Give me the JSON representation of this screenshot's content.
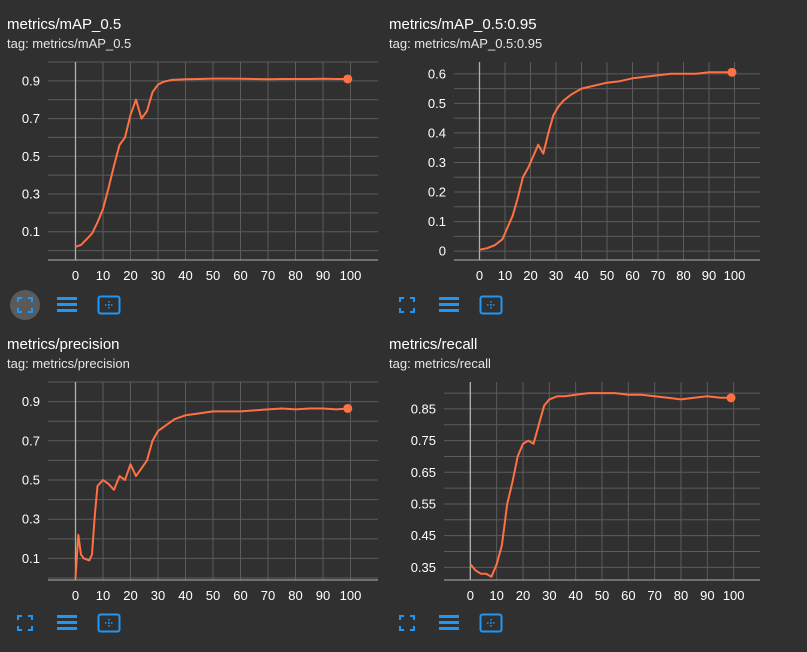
{
  "icons": {
    "fullscreen": "fullscreen-icon",
    "log_scale": "toggle-y-log-icon",
    "fit_domain": "fit-domain-icon"
  },
  "colors": {
    "background": "#303030",
    "grid": "#5c5c5c",
    "axis": "#b0b0b0",
    "series": "#ff7043",
    "series_raw": "#a0522d"
  },
  "cards": [
    {
      "title": "metrics/mAP_0.5",
      "tag": "tag: metrics/mAP_0.5",
      "chart_data": {
        "type": "line",
        "title": "metrics/mAP_0.5",
        "xlim": [
          -10,
          110
        ],
        "ylim": [
          -0.05,
          1.0
        ],
        "xticks": [
          0,
          10,
          20,
          30,
          40,
          50,
          60,
          70,
          80,
          90,
          100
        ],
        "yticks": [
          0.1,
          0.3,
          0.5,
          0.7,
          0.9
        ],
        "ytick_labels": [
          "0.1",
          "0.3",
          "0.5",
          "0.7",
          "0.9"
        ],
        "grid": true,
        "series": [
          {
            "x": [
              0,
              2,
              4,
              6,
              8,
              10,
              12,
              14,
              16,
              18,
              20,
              22,
              24,
              26,
              28,
              30,
              32,
              35,
              40,
              45,
              50,
              55,
              60,
              65,
              70,
              75,
              80,
              85,
              90,
              95,
              99
            ],
            "y": [
              0.02,
              0.03,
              0.06,
              0.09,
              0.15,
              0.22,
              0.33,
              0.45,
              0.56,
              0.6,
              0.72,
              0.8,
              0.7,
              0.74,
              0.84,
              0.88,
              0.895,
              0.905,
              0.908,
              0.91,
              0.912,
              0.912,
              0.911,
              0.91,
              0.909,
              0.91,
              0.91,
              0.91,
              0.911,
              0.91,
              0.91
            ]
          }
        ]
      }
    },
    {
      "title": "metrics/mAP_0.5:0.95",
      "tag": "tag: metrics/mAP_0.5:0.95",
      "chart_data": {
        "type": "line",
        "title": "metrics/mAP_0.5:0.95",
        "xlim": [
          -10,
          110
        ],
        "ylim": [
          -0.03,
          0.64
        ],
        "xticks": [
          0,
          10,
          20,
          30,
          40,
          50,
          60,
          70,
          80,
          90,
          100
        ],
        "yticks": [
          0,
          0.1,
          0.2,
          0.3,
          0.4,
          0.5,
          0.6
        ],
        "ytick_labels": [
          "0",
          "0.1",
          "0.2",
          "0.3",
          "0.4",
          "0.5",
          "0.6"
        ],
        "grid": true,
        "series": [
          {
            "x": [
              0,
              3,
              6,
              9,
              11,
              13,
              15,
              17,
              19,
              21,
              23,
              25,
              27,
              29,
              31,
              33,
              36,
              40,
              45,
              50,
              55,
              60,
              65,
              70,
              75,
              80,
              85,
              90,
              95,
              99
            ],
            "y": [
              0.005,
              0.01,
              0.02,
              0.04,
              0.08,
              0.12,
              0.18,
              0.25,
              0.28,
              0.32,
              0.36,
              0.33,
              0.4,
              0.46,
              0.49,
              0.51,
              0.53,
              0.55,
              0.56,
              0.57,
              0.575,
              0.585,
              0.59,
              0.595,
              0.6,
              0.6,
              0.6,
              0.605,
              0.605,
              0.605
            ]
          }
        ]
      }
    },
    {
      "title": "metrics/precision",
      "tag": "tag: metrics/precision",
      "chart_data": {
        "type": "line",
        "title": "metrics/precision",
        "xlim": [
          -10,
          110
        ],
        "ylim": [
          -0.01,
          1.0
        ],
        "xticks": [
          0,
          10,
          20,
          30,
          40,
          50,
          60,
          70,
          80,
          90,
          100
        ],
        "yticks": [
          0.1,
          0.3,
          0.5,
          0.7,
          0.9
        ],
        "ytick_labels": [
          "0.1",
          "0.3",
          "0.5",
          "0.7",
          "0.9"
        ],
        "grid": true,
        "series": [
          {
            "x": [
              0,
              1,
              2,
              3,
              5,
              6,
              7,
              8,
              10,
              12,
              14,
              16,
              18,
              20,
              22,
              24,
              26,
              28,
              30,
              33,
              36,
              40,
              45,
              50,
              55,
              60,
              65,
              70,
              75,
              80,
              85,
              90,
              95,
              99
            ],
            "y": [
              0.0,
              0.22,
              0.12,
              0.1,
              0.09,
              0.12,
              0.32,
              0.47,
              0.5,
              0.48,
              0.45,
              0.52,
              0.5,
              0.58,
              0.52,
              0.56,
              0.6,
              0.7,
              0.75,
              0.78,
              0.81,
              0.83,
              0.84,
              0.85,
              0.85,
              0.85,
              0.855,
              0.86,
              0.865,
              0.86,
              0.865,
              0.865,
              0.86,
              0.865
            ]
          }
        ]
      }
    },
    {
      "title": "metrics/recall",
      "tag": "tag: metrics/recall",
      "chart_data": {
        "type": "line",
        "title": "metrics/recall",
        "xlim": [
          -10,
          110
        ],
        "ylim": [
          0.31,
          0.935
        ],
        "xticks": [
          0,
          10,
          20,
          30,
          40,
          50,
          60,
          70,
          80,
          90,
          100
        ],
        "yticks": [
          0.35,
          0.45,
          0.55,
          0.65,
          0.75,
          0.85
        ],
        "ytick_labels": [
          "0.35",
          "0.45",
          "0.55",
          "0.65",
          "0.75",
          "0.85"
        ],
        "grid": true,
        "series": [
          {
            "x": [
              0,
              2,
              4,
              6,
              8,
              10,
              12,
              14,
              16,
              18,
              20,
              22,
              24,
              26,
              28,
              30,
              33,
              36,
              40,
              45,
              50,
              55,
              60,
              65,
              70,
              75,
              80,
              85,
              90,
              95,
              99
            ],
            "y": [
              0.36,
              0.34,
              0.33,
              0.33,
              0.32,
              0.36,
              0.42,
              0.55,
              0.62,
              0.7,
              0.74,
              0.75,
              0.74,
              0.8,
              0.86,
              0.88,
              0.89,
              0.89,
              0.895,
              0.9,
              0.9,
              0.9,
              0.895,
              0.895,
              0.89,
              0.885,
              0.88,
              0.885,
              0.89,
              0.885,
              0.885
            ]
          }
        ]
      }
    }
  ]
}
